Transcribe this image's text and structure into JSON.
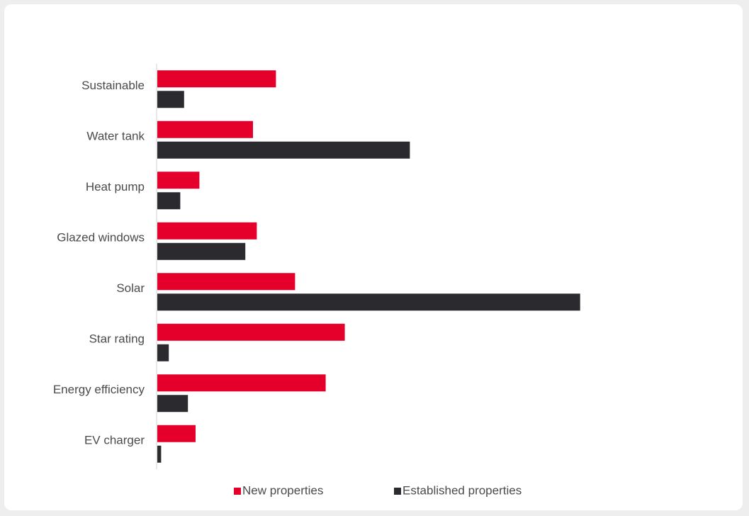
{
  "chart_data": {
    "type": "bar",
    "orientation": "horizontal",
    "categories": [
      "Sustainable",
      "Water tank",
      "Heat pump",
      "Glazed windows",
      "Solar",
      "Star rating",
      "Energy efficiency",
      "EV charger"
    ],
    "series": [
      {
        "name": "New properties",
        "color": "#e4002b",
        "values": [
          6.2,
          5.0,
          2.2,
          5.2,
          7.2,
          9.8,
          8.8,
          2.0
        ]
      },
      {
        "name": "Established properties",
        "color": "#2b2b2f",
        "values": [
          1.4,
          13.2,
          1.2,
          4.6,
          22.1,
          0.6,
          1.6,
          0.2
        ]
      }
    ],
    "xlim": [
      0,
      30
    ],
    "grid": false,
    "legend_position": "bottom",
    "title": "",
    "xlabel": "",
    "ylabel": ""
  }
}
